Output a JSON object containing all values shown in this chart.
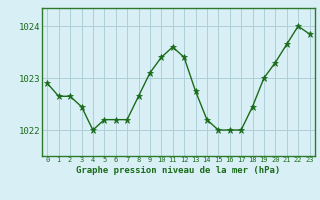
{
  "x": [
    0,
    1,
    2,
    3,
    4,
    5,
    6,
    7,
    8,
    9,
    10,
    11,
    12,
    13,
    14,
    15,
    16,
    17,
    18,
    19,
    20,
    21,
    22,
    23
  ],
  "y": [
    1022.9,
    1022.65,
    1022.65,
    1022.45,
    1022.0,
    1022.2,
    1022.2,
    1022.2,
    1022.65,
    1023.1,
    1023.4,
    1023.6,
    1023.4,
    1022.75,
    1022.2,
    1022.0,
    1022.0,
    1022.0,
    1022.45,
    1023.0,
    1023.3,
    1023.65,
    1024.0,
    1023.85
  ],
  "line_color": "#1a6b1a",
  "marker_color": "#1a6b1a",
  "bg_color": "#d8eff5",
  "grid_color": "#aed0d8",
  "axis_label_color": "#1a6b1a",
  "tick_label_color": "#1a6b1a",
  "xlabel": "Graphe pression niveau de la mer (hPa)",
  "ylim": [
    1021.5,
    1024.35
  ],
  "yticks": [
    1022,
    1023,
    1024
  ],
  "xticks": [
    0,
    1,
    2,
    3,
    4,
    5,
    6,
    7,
    8,
    9,
    10,
    11,
    12,
    13,
    14,
    15,
    16,
    17,
    18,
    19,
    20,
    21,
    22,
    23
  ],
  "border_color": "#2d7a2d"
}
